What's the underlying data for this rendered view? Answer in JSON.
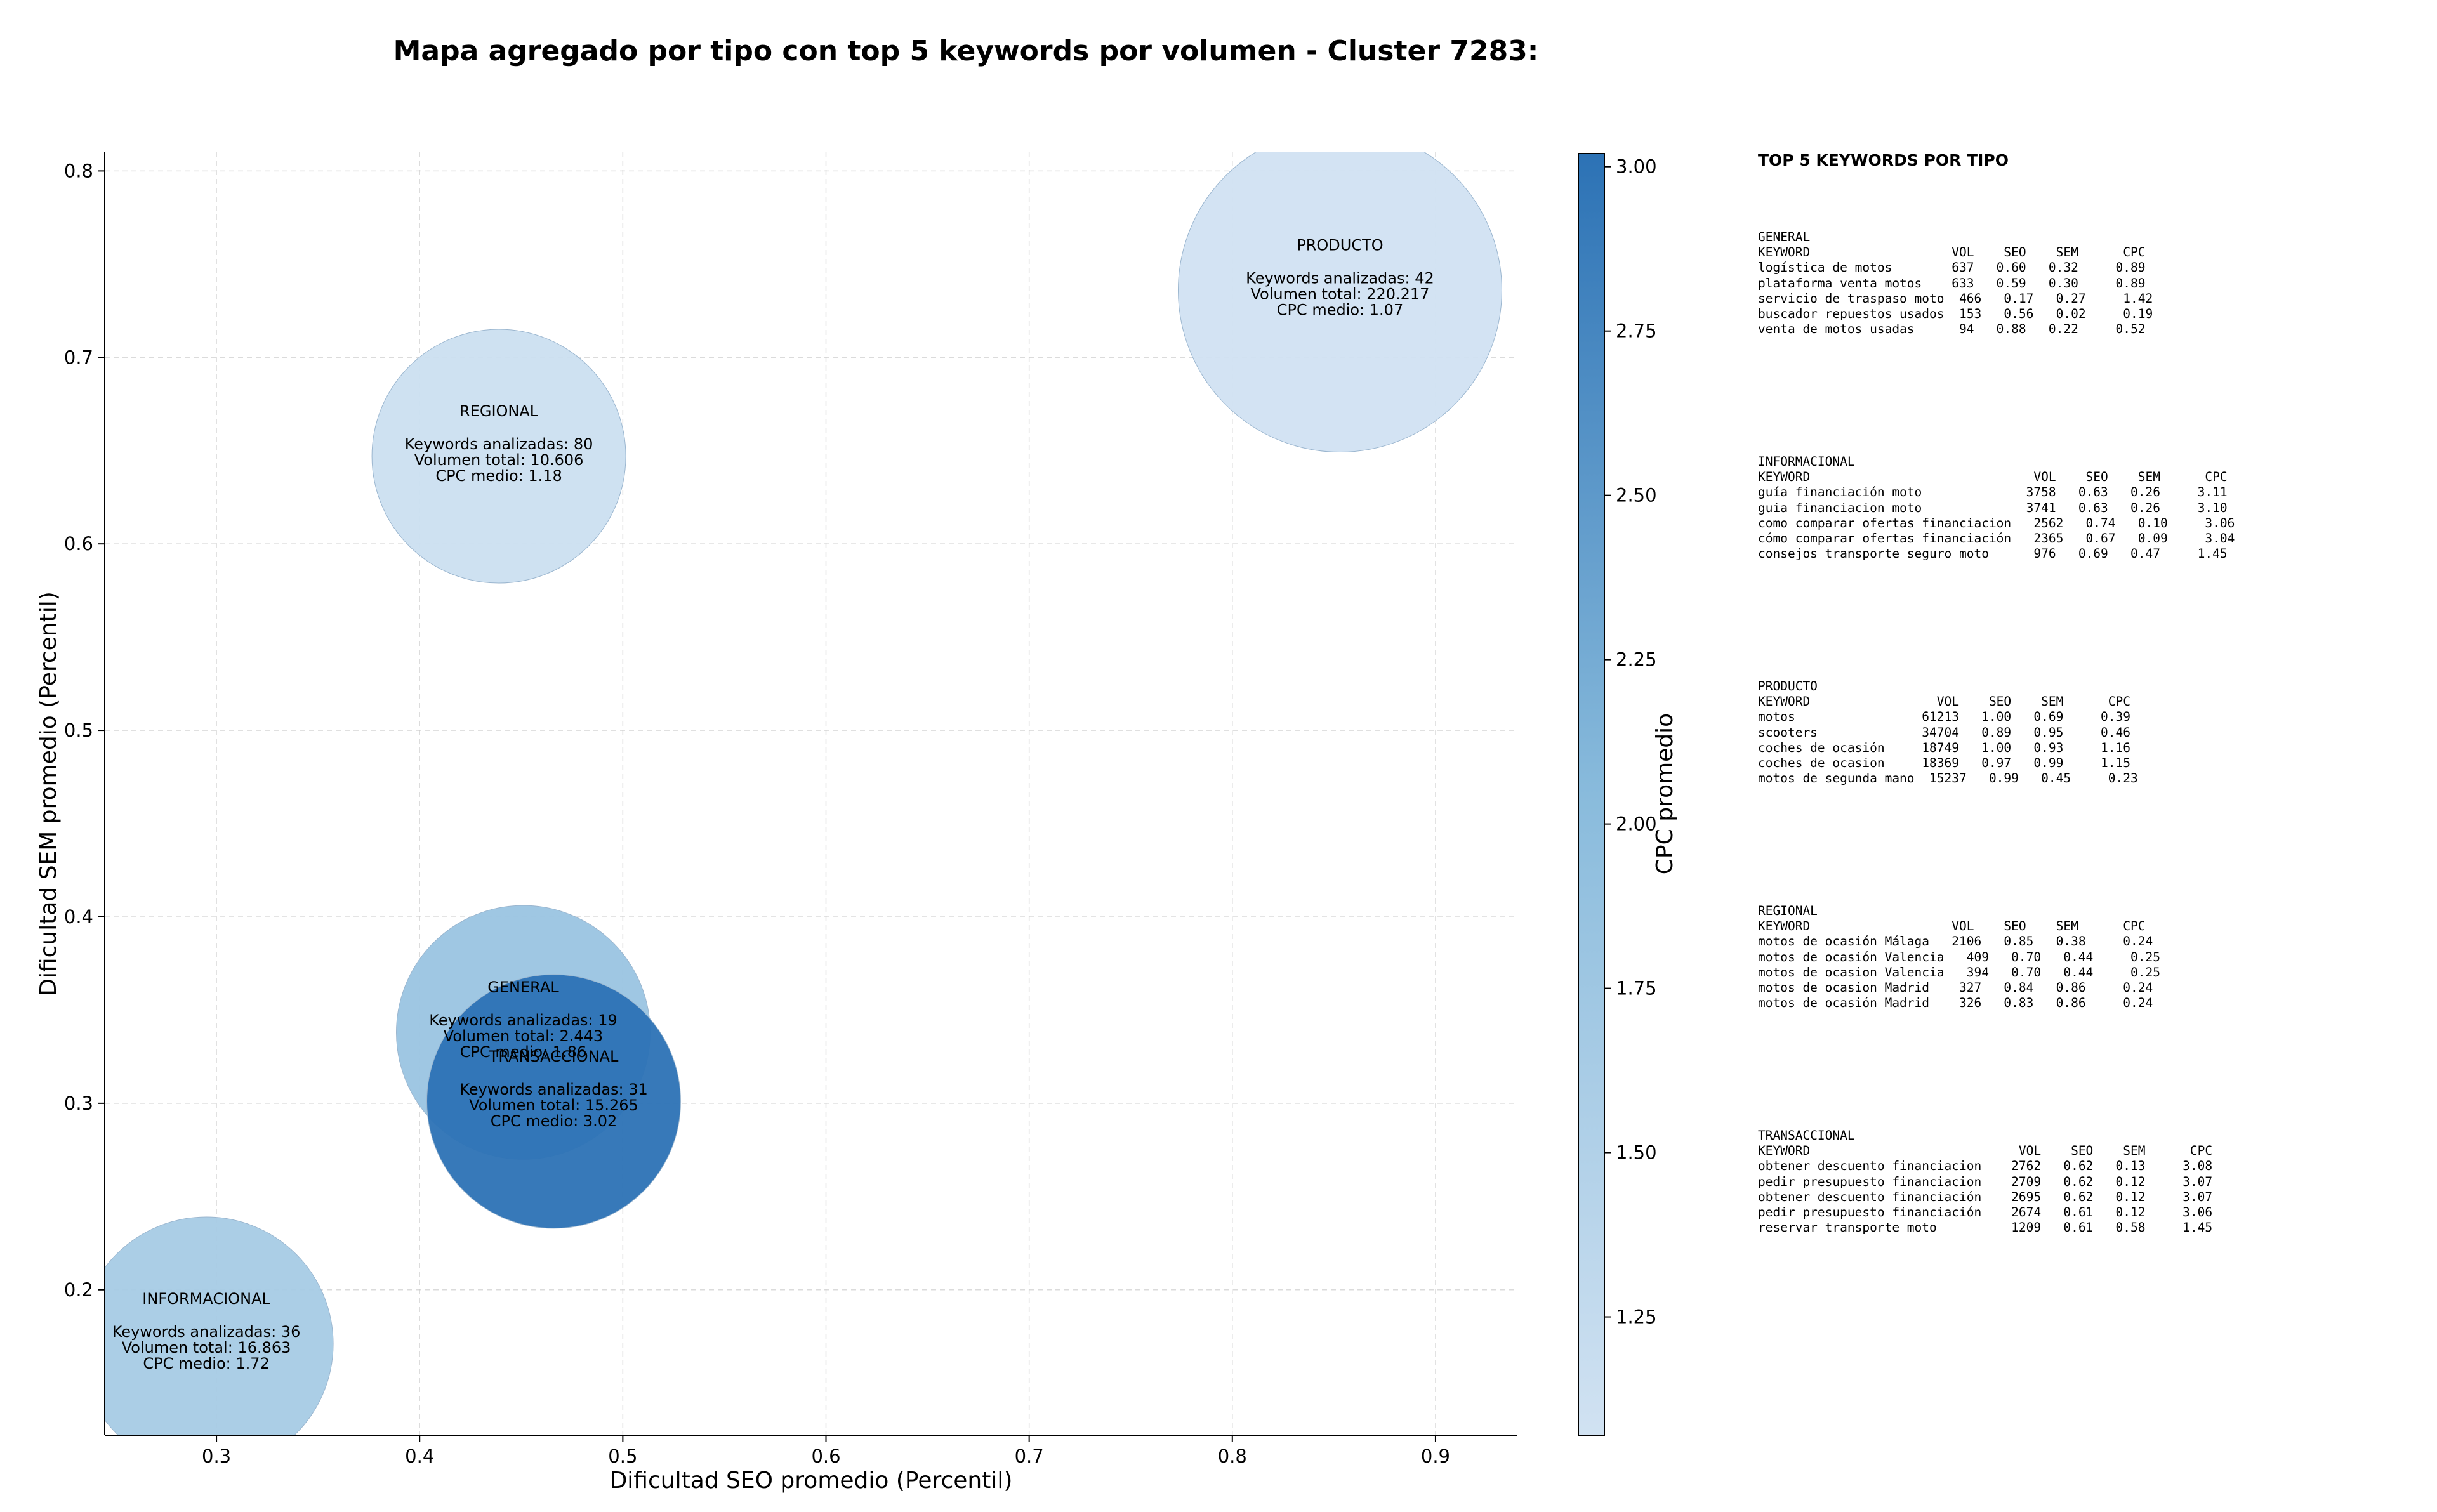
{
  "chart_data": {
    "type": "scatter",
    "title": "Mapa agregado por tipo con top 5 keywords por volumen - Cluster 7283:",
    "xlabel": "Dificultad SEO promedio (Percentil)",
    "ylabel": "Dificultad SEM promedio (Percentil)",
    "xlim": [
      0.245,
      0.94
    ],
    "ylim": [
      0.122,
      0.81
    ],
    "xticks": [
      "0.3",
      "0.4",
      "0.5",
      "0.6",
      "0.7",
      "0.8",
      "0.9"
    ],
    "yticks": [
      "0.2",
      "0.3",
      "0.4",
      "0.5",
      "0.6",
      "0.7",
      "0.8"
    ],
    "grid": true,
    "colorbar": {
      "label": "CPC promedio",
      "range": [
        1.07,
        3.02
      ],
      "ticks": [
        "1.25",
        "1.50",
        "1.75",
        "2.00",
        "2.25",
        "2.50",
        "2.75",
        "3.00"
      ],
      "colors": [
        "#d1e2f2",
        "#2c72b5"
      ]
    },
    "points": [
      {
        "name": "PRODUCTO",
        "x": 0.853,
        "y": 0.736,
        "size": 220217,
        "cpc": 1.07,
        "keywords_line": "Keywords analizadas: 42",
        "volume_line": "Volumen total: 220.217",
        "cpc_line": "CPC medio: 1.07"
      },
      {
        "name": "REGIONAL",
        "x": 0.439,
        "y": 0.647,
        "size": 10606,
        "cpc": 1.18,
        "keywords_line": "Keywords analizadas: 80",
        "volume_line": "Volumen total: 10.606",
        "cpc_line": "CPC medio: 1.18"
      },
      {
        "name": "GENERAL",
        "x": 0.451,
        "y": 0.338,
        "size": 2443,
        "cpc": 1.86,
        "keywords_line": "Keywords analizadas: 19",
        "volume_line": "Volumen total: 2.443",
        "cpc_line": "CPC medio: 1.86"
      },
      {
        "name": "TRANSACCIONAL",
        "x": 0.466,
        "y": 0.301,
        "size": 15265,
        "cpc": 3.02,
        "keywords_line": "Keywords analizadas: 31",
        "volume_line": "Volumen total: 15.265",
        "cpc_line": "CPC medio: 3.02"
      },
      {
        "name": "INFORMACIONAL",
        "x": 0.295,
        "y": 0.171,
        "size": 16863,
        "cpc": 1.72,
        "keywords_line": "Keywords analizadas: 36",
        "volume_line": "Volumen total: 16.863",
        "cpc_line": "CPC medio: 1.72"
      }
    ]
  },
  "side_panel": {
    "title": "TOP 5 KEYWORDS POR TIPO",
    "blocks": [
      {
        "name": "GENERAL",
        "text": "GENERAL\nKEYWORD                   VOL    SEO    SEM      CPC\nlogística de motos        637   0.60   0.32     0.89\nplataforma venta motos    633   0.59   0.30     0.89\nservicio de traspaso moto  466   0.17   0.27     1.42\nbuscador repuestos usados  153   0.56   0.02     0.19\nventa de motos usadas      94   0.88   0.22     0.52"
      },
      {
        "name": "INFORMACIONAL",
        "text": "INFORMACIONAL\nKEYWORD                              VOL    SEO    SEM      CPC\nguía financiación moto              3758   0.63   0.26     3.11\nguia financiacion moto              3741   0.63   0.26     3.10\ncomo comparar ofertas financiacion   2562   0.74   0.10     3.06\ncómo comparar ofertas financiación   2365   0.67   0.09     3.04\nconsejos transporte seguro moto      976   0.69   0.47     1.45"
      },
      {
        "name": "PRODUCTO",
        "text": "PRODUCTO\nKEYWORD                 VOL    SEO    SEM      CPC\nmotos                 61213   1.00   0.69     0.39\nscooters              34704   0.89   0.95     0.46\ncoches de ocasión     18749   1.00   0.93     1.16\ncoches de ocasion     18369   0.97   0.99     1.15\nmotos de segunda mano  15237   0.99   0.45     0.23"
      },
      {
        "name": "REGIONAL",
        "text": "REGIONAL\nKEYWORD                   VOL    SEO    SEM      CPC\nmotos de ocasión Málaga   2106   0.85   0.38     0.24\nmotos de ocasión Valencia   409   0.70   0.44     0.25\nmotos de ocasion Valencia   394   0.70   0.44     0.25\nmotos de ocasion Madrid    327   0.84   0.86     0.24\nmotos de ocasión Madrid    326   0.83   0.86     0.24"
      },
      {
        "name": "TRANSACCIONAL",
        "text": "TRANSACCIONAL\nKEYWORD                            VOL    SEO    SEM      CPC\nobtener descuento financiacion    2762   0.62   0.13     3.08\npedir presupuesto financiacion    2709   0.62   0.12     3.07\nobtener descuento financiación    2695   0.62   0.12     3.07\npedir presupuesto financiación    2674   0.61   0.12     3.06\nreservar transporte moto          1209   0.61   0.58     1.45"
      }
    ]
  }
}
